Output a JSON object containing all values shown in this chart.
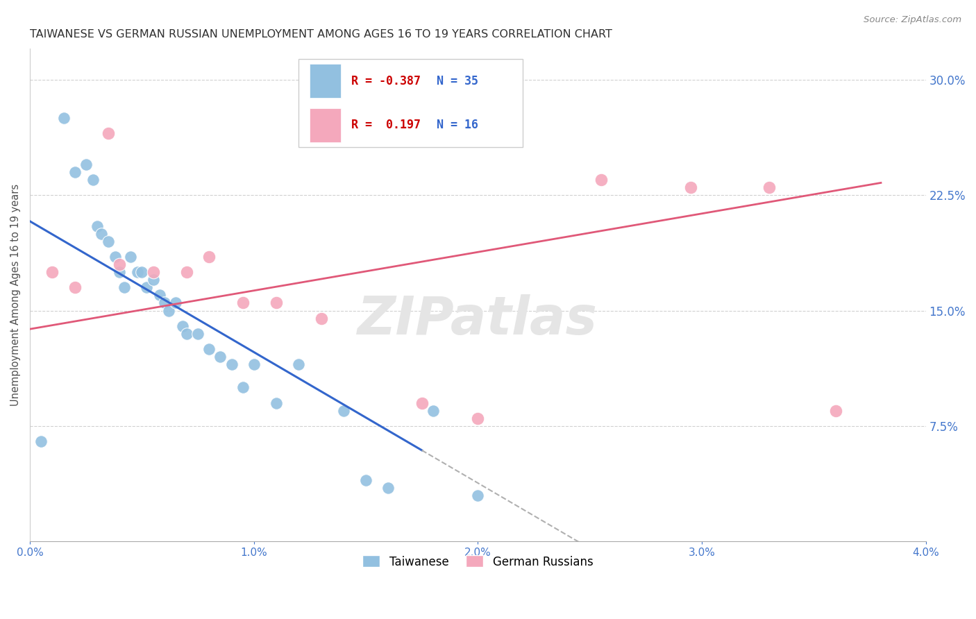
{
  "title": "TAIWANESE VS GERMAN RUSSIAN UNEMPLOYMENT AMONG AGES 16 TO 19 YEARS CORRELATION CHART",
  "source": "Source: ZipAtlas.com",
  "ylabel": "Unemployment Among Ages 16 to 19 years",
  "xmin": 0.0,
  "xmax": 0.04,
  "ymin": 0.0,
  "ymax": 0.32,
  "yticks": [
    0.075,
    0.15,
    0.225,
    0.3
  ],
  "ytick_labels": [
    "7.5%",
    "15.0%",
    "22.5%",
    "30.0%"
  ],
  "xticks": [
    0.0,
    0.01,
    0.02,
    0.03,
    0.04
  ],
  "xtick_labels": [
    "0.0%",
    "1.0%",
    "2.0%",
    "3.0%",
    "4.0%"
  ],
  "legend_R": [
    -0.387,
    0.197
  ],
  "legend_N": [
    35,
    16
  ],
  "blue_color": "#92c0e0",
  "pink_color": "#f4a8bc",
  "blue_line_color": "#3366cc",
  "pink_line_color": "#e05878",
  "dashed_color": "#b0b0b0",
  "title_color": "#303030",
  "axis_label_color": "#4477cc",
  "grid_color": "#d0d0d0",
  "watermark": "ZIPatlas",
  "taiwanese_x": [
    0.0005,
    0.0015,
    0.002,
    0.0025,
    0.0028,
    0.003,
    0.0032,
    0.0035,
    0.0038,
    0.004,
    0.0042,
    0.0045,
    0.0048,
    0.005,
    0.0052,
    0.0055,
    0.0058,
    0.006,
    0.0062,
    0.0065,
    0.0068,
    0.007,
    0.0075,
    0.008,
    0.0085,
    0.009,
    0.0095,
    0.01,
    0.011,
    0.012,
    0.014,
    0.015,
    0.016,
    0.018,
    0.02
  ],
  "taiwanese_y": [
    0.065,
    0.275,
    0.24,
    0.245,
    0.235,
    0.205,
    0.2,
    0.195,
    0.185,
    0.175,
    0.165,
    0.185,
    0.175,
    0.175,
    0.165,
    0.17,
    0.16,
    0.155,
    0.15,
    0.155,
    0.14,
    0.135,
    0.135,
    0.125,
    0.12,
    0.115,
    0.1,
    0.115,
    0.09,
    0.115,
    0.085,
    0.04,
    0.035,
    0.085,
    0.03
  ],
  "german_x": [
    0.001,
    0.002,
    0.0035,
    0.004,
    0.0055,
    0.007,
    0.008,
    0.0095,
    0.011,
    0.013,
    0.0175,
    0.02,
    0.0255,
    0.0295,
    0.033,
    0.036
  ],
  "german_y": [
    0.175,
    0.165,
    0.265,
    0.18,
    0.175,
    0.175,
    0.185,
    0.155,
    0.155,
    0.145,
    0.09,
    0.08,
    0.235,
    0.23,
    0.23,
    0.085
  ],
  "blue_line_x0": 0.0,
  "blue_line_x1_solid": 0.0175,
  "blue_line_x1_dashed": 0.027,
  "blue_intercept": 0.208,
  "blue_slope": -8.5,
  "pink_intercept": 0.138,
  "pink_slope": 2.5,
  "pink_line_x0": 0.0,
  "pink_line_x1": 0.038
}
